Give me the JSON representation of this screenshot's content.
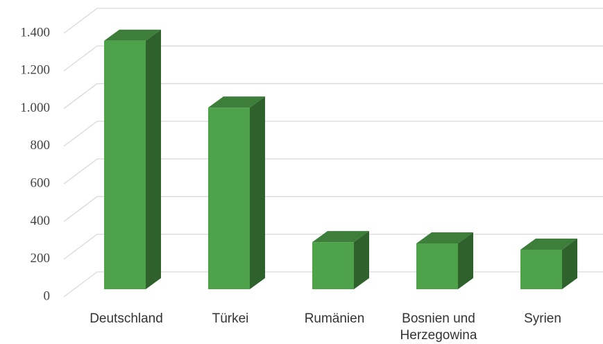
{
  "chart_data": {
    "type": "bar3d",
    "categories": [
      "Deutschland",
      "Türkei",
      "Rumänien",
      "Bosnien und Herzegowina",
      "Syrien"
    ],
    "values": [
      1320,
      965,
      250,
      243,
      210
    ],
    "color": "#4ea24a",
    "ylim": [
      0,
      1400
    ],
    "yticks": [
      0,
      200,
      400,
      600,
      800,
      {
        "value": 1000,
        "label": "1.000"
      },
      {
        "value": 1200,
        "label": "1.200"
      },
      {
        "value": 1400,
        "label": "1.400"
      }
    ],
    "grid": true
  }
}
